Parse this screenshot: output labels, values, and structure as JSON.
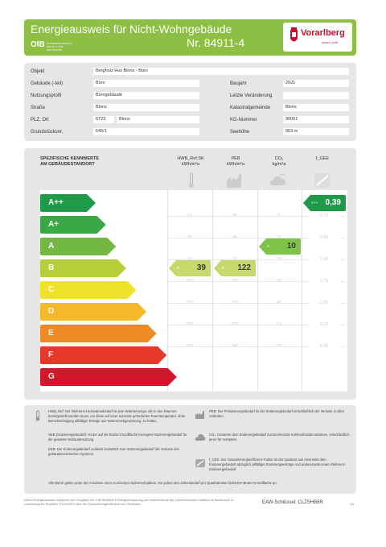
{
  "header": {
    "title": "Energieausweis für Nicht-Wohngebäude",
    "number": "Nr. 84911-4",
    "oib_logo": "OIB",
    "oib_sub": "ÖSTERREICHISCHES INSTITUT FÜR BAUTECHNIK",
    "state_logo": "Vorarlberg",
    "state_sub": "unser Land",
    "colors": {
      "header_green": "#8cbf43",
      "logo_red": "#c8102e"
    }
  },
  "object": {
    "objekt_label": "Objekt",
    "objekt_value": "Bergholz Hus Blons - Büro",
    "gebaeude_label": "Gebäude (-teil)",
    "gebaeude_value": "Büro",
    "baujahr_label": "Baujahr",
    "baujahr_value": "2021",
    "nutzung_label": "Nutzungsprofil",
    "nutzung_value": "Bürogebäude",
    "letzte_label": "Letzte Veränderung",
    "letzte_value": "",
    "strasse_label": "Straße",
    "strasse_value": "Blons",
    "kataster_label": "Katastralgemeinde",
    "kataster_value": "Blons",
    "plz_label": "PLZ, Ort",
    "plz_value": "6723",
    "ort_value": "Blons",
    "kg_label": "KG-Nummer",
    "kg_value": "90001",
    "grundstueck_label": "Grundstücksnr.",
    "grundstueck_value": "645/1",
    "seehoehe_label": "Seehöhe",
    "seehoehe_value": "903 m"
  },
  "energy": {
    "heading_line1": "SPEZIFISCHE KENNWERTE",
    "heading_line2": "AM GEBÄUDESTANDORT",
    "columns": [
      {
        "name": "HWB_Ref,SK",
        "unit": "kWh/m²a",
        "icon": "thermometer-icon"
      },
      {
        "name": "PEB",
        "unit": "kWh/m²a",
        "icon": "factory-icon"
      },
      {
        "name": "CO₂",
        "unit": "kg/m²a",
        "icon": "co2-cloud-icon"
      },
      {
        "name": "f_GEE",
        "unit": "",
        "icon": "fraction-icon"
      }
    ],
    "classes": [
      {
        "label": "A++",
        "color": "#1e9a48"
      },
      {
        "label": "A+",
        "color": "#3aa945"
      },
      {
        "label": "A",
        "color": "#74b844"
      },
      {
        "label": "B",
        "color": "#b8cd3a"
      },
      {
        "label": "C",
        "color": "#f0e22a"
      },
      {
        "label": "D",
        "color": "#f5b92a"
      },
      {
        "label": "E",
        "color": "#ee8a25"
      },
      {
        "label": "F",
        "color": "#e6392c"
      },
      {
        "label": "G",
        "color": "#d3172a"
      }
    ],
    "ticks": {
      "hwb": [
        "10",
        "25",
        "50",
        "100",
        "150",
        "200",
        "250"
      ],
      "peb": [
        "30",
        "40",
        "70",
        "160",
        "220",
        "280",
        "340"
      ],
      "co2": [
        "5",
        "15",
        "25",
        "32",
        "45",
        "52",
        "70"
      ],
      "fgee": [
        "0,70",
        "0,85",
        "1,00",
        "1,75",
        "2,50",
        "3,25",
        "4,00"
      ]
    },
    "markers": {
      "hwb": {
        "letter": "B",
        "value": "39",
        "class_index": 3,
        "color": "#c8d86a"
      },
      "peb": {
        "letter": "B",
        "value": "122",
        "class_index": 3,
        "color": "#c8d86a"
      },
      "co2": {
        "letter": "A",
        "value": "10",
        "class_index": 2,
        "color": "#7fc24a"
      },
      "fgee": {
        "letter": "A++",
        "value": "0,39",
        "class_index": 0,
        "color": "#1e9a48"
      }
    }
  },
  "legend": {
    "hwb": "HWB_Ref: Der Referenz-Heizwärmebedarf ist jene Wärmemenge, die in den Räumen bereitgestellt werden muss, um diese auf einer normativ geforderten Raumtemperatur, ohne Berücksichtigung allfälliger Erträge aus Wärmerückgewinnung, zu halten.",
    "neb": "NEB (Nutzenergiebedarf): Ist der auf die Brutto-Grundfläche bezogene Nutzenergiebedarf für die gesamte Gebäudenutzung.",
    "eeb": "EEB: Der Endenergiebedarf umfasst zusätzlich zum Nutzenergiebedarf die Verluste des gebäudetechnischen Systems.",
    "peb": "PEB: Der Primärenergiebedarf ist der Endenergiebedarf einschließlich der Verluste in allen Vorketten.",
    "co2": "CO₂: Gesamte dem Endenergiebedarf zuzurechnende Kohlendioxidemissionen, einschließlich jener für Vorketten.",
    "fgee": "f_GEE: Der Gesamtenergieeffizienz-Faktor ist der Quotient aus einerseits dem Endenergiebedarf abzüglich allfälliger Endenergieerträge und andererseits einem Referenz-Endenergiebedarf.",
    "note": "Alle Werte gelten unter der Annahme eines normierten Nutzerverhaltens. Sie geben den Jahresbedarf pro Quadratmeter beheizter Brutto-Grundfläche an."
  },
  "footer": {
    "text": "Dieser Energieausweis entspricht den Vorgaben der OIB-Richtlinie 6 Energieeinsparung und Wärmeschutz des Österreichischen Instituts für Bautechnik in Umsetzung der Richtlinie 2010/31/EU über die Gesamtenergieeffizienz von Gebäuden.",
    "software": "EAW-Schlüssel: CLZSHB8R",
    "page": "1/1"
  }
}
